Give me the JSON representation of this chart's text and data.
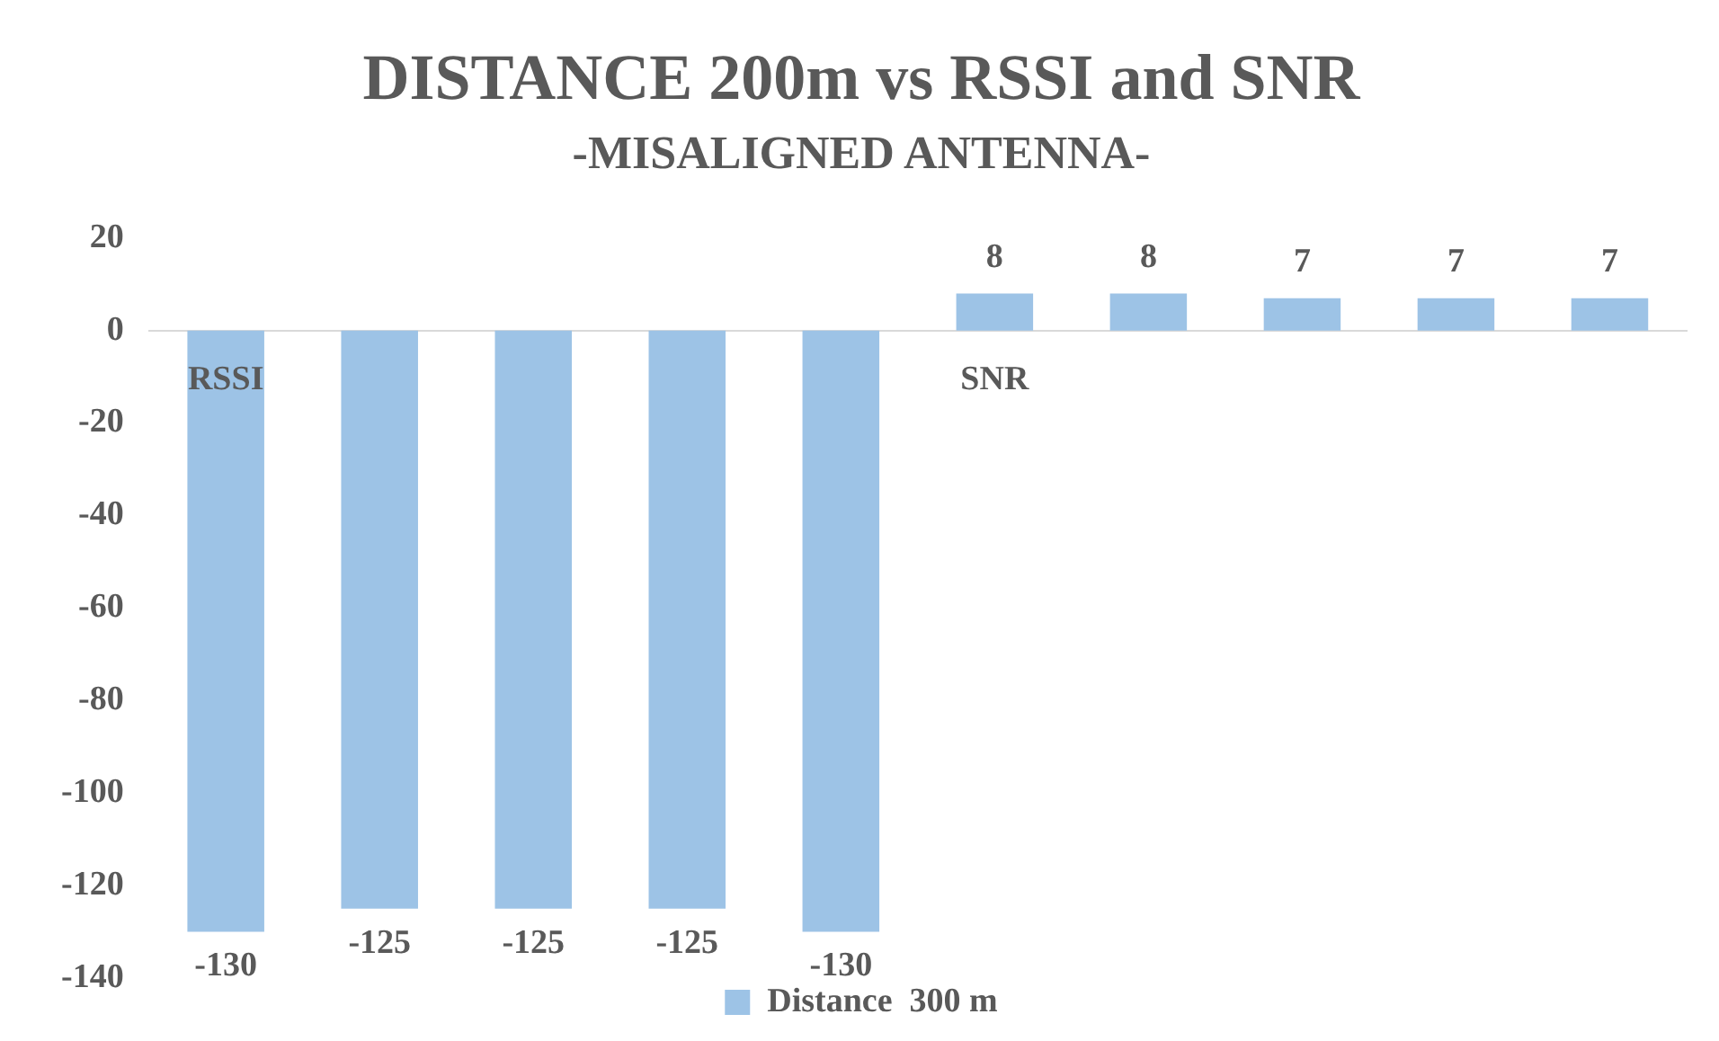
{
  "chart_data": {
    "type": "bar",
    "title": "DISTANCE 200m vs RSSI and SNR",
    "subtitle": "-MISALIGNED ANTENNA-",
    "categories": [
      "RSSI",
      null,
      null,
      null,
      null,
      "SNR",
      null,
      null,
      null,
      null
    ],
    "series": [
      {
        "name": "Distance  300 m",
        "color": "#9dc3e6",
        "values": [
          -130,
          -125,
          -125,
          -125,
          -130,
          8,
          8,
          7,
          7,
          7
        ]
      }
    ],
    "ylim": [
      -140,
      20
    ],
    "yticks": [
      -140,
      -120,
      -100,
      -80,
      -60,
      -40,
      -20,
      0,
      20
    ],
    "data_labels": true,
    "grid": false,
    "legend": "bottom"
  }
}
